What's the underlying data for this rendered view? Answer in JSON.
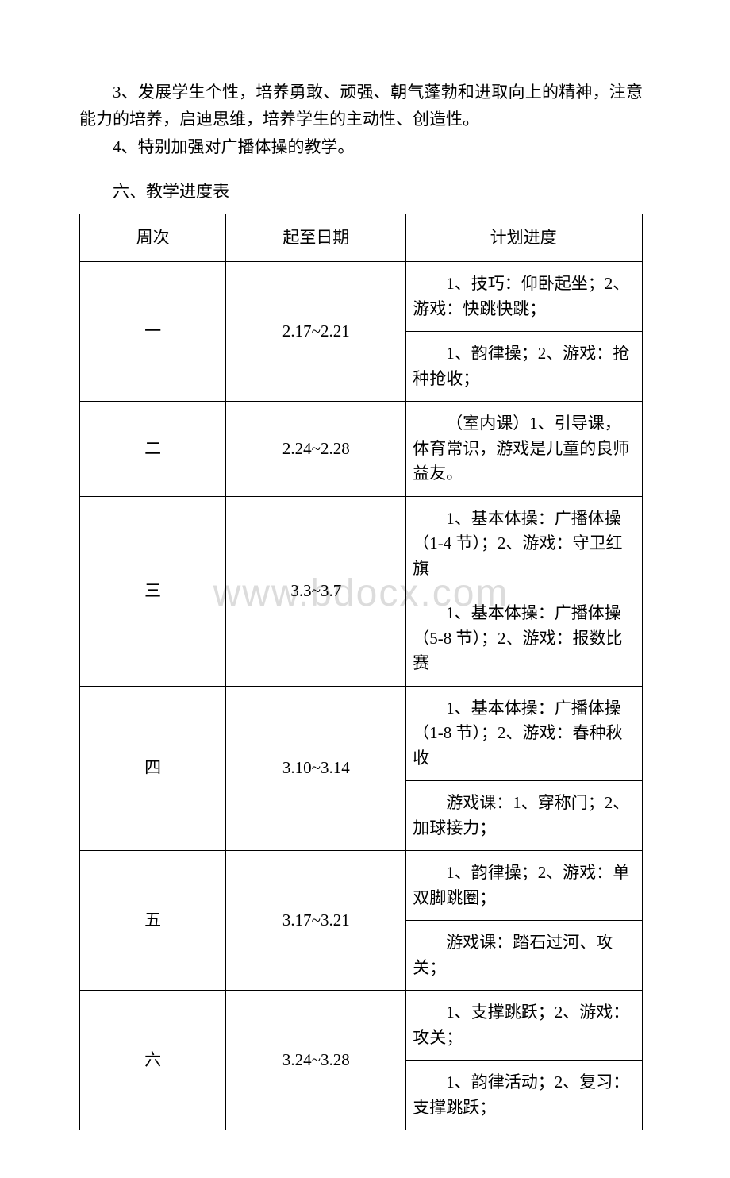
{
  "paragraphs": {
    "p3": "3、发展学生个性，培养勇敢、顽强、朝气蓬勃和进取向上的精神，注意能力的培养，启迪思维，培养学生的主动性、创造性。",
    "p4": "4、特别加强对广播体操的教学。"
  },
  "section_title": "六、教学进度表",
  "watermark": "www.bdocx.com",
  "table": {
    "headers": {
      "week": "周次",
      "date": "起至日期",
      "plan": "计划进度"
    },
    "rows": [
      {
        "week": "一",
        "date": "2.17~2.21",
        "plans": [
          "1、技巧：仰卧起坐；2、游戏：快跳快跳；",
          "1、韵律操；2、游戏：抢种抢收；"
        ]
      },
      {
        "week": "二",
        "date": "2.24~2.28",
        "plans": [
          "（室内课）1、引导课，体育常识，游戏是儿童的良师益友。"
        ]
      },
      {
        "week": "三",
        "date": "3.3~3.7",
        "plans": [
          "1、基本体操：广播体操（1-4 节）；2、游戏：守卫红旗",
          "1、基本体操：广播体操（5-8 节）；2、游戏：报数比赛"
        ]
      },
      {
        "week": "四",
        "date": "3.10~3.14",
        "plans": [
          "1、基本体操：广播体操（1-8 节）；2、游戏：春种秋收",
          "游戏课：1、穿称门；2、加球接力；"
        ]
      },
      {
        "week": "五",
        "date": "3.17~3.21",
        "plans": [
          "1、韵律操；2、游戏：单双脚跳圈；",
          "游戏课：踏石过河、攻关；"
        ]
      },
      {
        "week": "六",
        "date": "3.24~3.28",
        "plans": [
          "1、支撑跳跃；2、游戏：攻关；",
          "1、韵律活动；2、复习：支撑跳跃；"
        ]
      }
    ],
    "styling": {
      "border_color": "#000000",
      "border_width": 1.5,
      "font_size": 21,
      "col_widths": [
        0.26,
        0.32,
        0.42
      ]
    }
  }
}
